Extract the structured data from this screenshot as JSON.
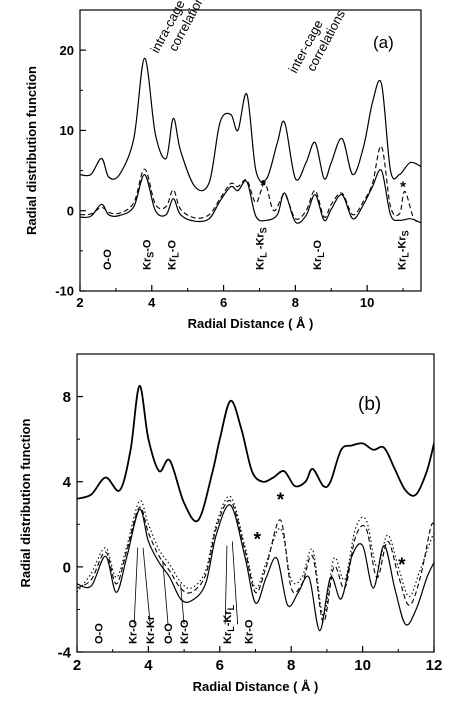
{
  "chart_data": [
    {
      "panel": "(a)",
      "type": "line",
      "xlabel": "Radial Distance ( Å )",
      "ylabel": "Radial distribution function",
      "xlim": [
        2,
        11.5
      ],
      "ylim": [
        -10,
        25
      ],
      "xticks": [
        "2",
        "4",
        "6",
        "8",
        "10"
      ],
      "yticks": [
        "-10",
        "0",
        "10",
        "20"
      ],
      "grid": false,
      "annotations": [
        "intra-cage correlations",
        "inter-cage correlations"
      ],
      "markers": [
        {
          "text": "*",
          "x": 7.1,
          "y": 2.6
        },
        {
          "text": "*",
          "x": 11.0,
          "y": 2.4
        }
      ],
      "peak_labels": [
        {
          "text": "O-O",
          "x": 2.75
        },
        {
          "text": "Kr",
          "sub": "S",
          "text2": "-O",
          "x": 3.85
        },
        {
          "text": "Kr",
          "sub": "L",
          "text2": "-O",
          "x": 4.55
        },
        {
          "text": "Kr",
          "sub": "L",
          "text2": " -Kr",
          "sub2": "S",
          "x": 7.0
        },
        {
          "text": "Kr",
          "sub": "L",
          "text2": "-O",
          "x": 8.6
        },
        {
          "text": "Kr",
          "sub": "L",
          "text2": "-Kr",
          "sub2": "S",
          "x": 10.95
        }
      ],
      "series": [
        {
          "style": "solid",
          "x": [
            2.0,
            2.3,
            2.6,
            2.8,
            3.1,
            3.5,
            3.8,
            4.1,
            4.4,
            4.6,
            4.8,
            5.2,
            5.6,
            5.9,
            6.2,
            6.4,
            6.65,
            6.9,
            7.2,
            7.5,
            7.7,
            8.0,
            8.3,
            8.55,
            8.8,
            9.0,
            9.3,
            9.6,
            9.9,
            10.15,
            10.4,
            10.65,
            10.9,
            11.2,
            11.5
          ],
          "values": [
            4.5,
            4.5,
            6.5,
            4.2,
            4.5,
            9.0,
            19.0,
            9.5,
            6.5,
            11.5,
            7.5,
            3.0,
            3.5,
            11.0,
            12.0,
            10.0,
            14.5,
            5.0,
            4.0,
            8.5,
            11.0,
            4.0,
            6.0,
            8.5,
            4.0,
            6.0,
            9.0,
            4.5,
            8.0,
            13.5,
            15.8,
            5.0,
            4.5,
            6.0,
            5.5
          ]
        },
        {
          "style": "solid",
          "x": [
            2.0,
            2.3,
            2.6,
            2.8,
            3.1,
            3.5,
            3.8,
            4.1,
            4.4,
            4.6,
            4.8,
            5.2,
            5.6,
            5.9,
            6.2,
            6.4,
            6.65,
            6.9,
            7.2,
            7.5,
            7.7,
            8.0,
            8.3,
            8.55,
            8.8,
            9.0,
            9.3,
            9.6,
            9.9,
            10.15,
            10.4,
            10.65,
            10.9,
            11.2,
            11.5
          ],
          "values": [
            -0.8,
            -0.7,
            0.8,
            -0.5,
            -0.6,
            0.5,
            4.5,
            0.0,
            -0.5,
            1.5,
            -0.5,
            -1.3,
            -1.0,
            1.2,
            3.0,
            2.5,
            3.6,
            -0.7,
            -1.2,
            -0.5,
            2.2,
            -1.4,
            -0.6,
            2.0,
            -1.2,
            0.2,
            2.0,
            -1.0,
            0.8,
            3.0,
            5.0,
            -0.5,
            -1.2,
            -1.0,
            -1.5
          ]
        },
        {
          "style": "dashed",
          "x": [
            2.0,
            2.3,
            2.6,
            2.8,
            3.1,
            3.5,
            3.8,
            4.1,
            4.4,
            4.6,
            4.8,
            5.2,
            5.6,
            5.9,
            6.2,
            6.4,
            6.65,
            6.9,
            7.15,
            7.4,
            7.7,
            8.0,
            8.3,
            8.55,
            8.8,
            9.0,
            9.3,
            9.6,
            9.9,
            10.15,
            10.4,
            10.65,
            10.9,
            11.05,
            11.3,
            11.5
          ],
          "values": [
            -0.5,
            -0.4,
            0.4,
            -0.2,
            -0.3,
            1.0,
            5.2,
            0.8,
            0.5,
            2.6,
            0.2,
            -0.9,
            -0.5,
            1.5,
            3.4,
            3.0,
            3.8,
            1.0,
            3.4,
            0.0,
            2.0,
            -1.0,
            0.0,
            2.5,
            -0.8,
            0.8,
            2.2,
            -0.5,
            1.2,
            3.4,
            8.0,
            0.5,
            -0.4,
            2.4,
            -1.0,
            -1.2
          ]
        }
      ]
    },
    {
      "panel": "(b)",
      "type": "line",
      "xlabel": "Radial Distance ( Å )",
      "ylabel": "Radial distribution function",
      "xlim": [
        2,
        12
      ],
      "ylim": [
        -4,
        10
      ],
      "xticks": [
        "2",
        "4",
        "6",
        "8",
        "10",
        "12"
      ],
      "yticks": [
        "-4",
        "0",
        "4",
        "8"
      ],
      "grid": false,
      "markers": [
        {
          "text": "*",
          "x": 7.7,
          "y": 2.85
        },
        {
          "text": "*",
          "x": 7.05,
          "y": 1.0
        },
        {
          "text": "*",
          "x": 11.1,
          "y": -0.2
        }
      ],
      "peak_labels": [
        {
          "text": "O-O",
          "x": 2.6
        },
        {
          "text": "Kr-O",
          "x": 3.55
        },
        {
          "text": "Kr-Kr",
          "x": 4.05
        },
        {
          "text": "O-O",
          "x": 4.55
        },
        {
          "text": "Kr-O",
          "x": 5.0
        },
        {
          "text": "Kr",
          "sub": "L",
          "text2": "-Kr",
          "sub2": "L",
          "x": 6.2
        },
        {
          "text": "Kr-O",
          "x": 6.8
        }
      ],
      "series": [
        {
          "style": "solid-thick",
          "x": [
            2.0,
            2.4,
            2.8,
            3.2,
            3.5,
            3.75,
            4.0,
            4.3,
            4.6,
            5.0,
            5.4,
            5.8,
            6.0,
            6.3,
            6.6,
            6.9,
            7.2,
            7.5,
            7.8,
            8.1,
            8.4,
            8.6,
            8.9,
            9.1,
            9.4,
            9.7,
            10.0,
            10.3,
            10.6,
            10.9,
            11.2,
            11.5,
            11.8,
            12.0
          ],
          "values": [
            3.2,
            3.4,
            4.2,
            3.6,
            5.5,
            8.5,
            6.0,
            4.5,
            5.0,
            3.0,
            2.2,
            4.5,
            6.0,
            7.8,
            6.5,
            4.5,
            4.0,
            4.2,
            4.5,
            3.8,
            4.0,
            4.6,
            3.8,
            4.0,
            5.5,
            5.7,
            5.8,
            5.5,
            5.6,
            4.6,
            3.6,
            3.4,
            4.5,
            5.8
          ]
        },
        {
          "style": "solid",
          "x": [
            2.0,
            2.4,
            2.8,
            3.1,
            3.4,
            3.75,
            4.0,
            4.3,
            4.6,
            4.9,
            5.2,
            5.6,
            5.9,
            6.3,
            6.7,
            7.0,
            7.3,
            7.6,
            7.9,
            8.2,
            8.5,
            8.8,
            9.1,
            9.4,
            9.7,
            10.0,
            10.3,
            10.6,
            10.9,
            11.2,
            11.5,
            11.8,
            12.0
          ],
          "values": [
            -0.8,
            -0.9,
            0.5,
            -1.2,
            0.5,
            2.7,
            1.2,
            0.2,
            -0.5,
            -1.5,
            -1.6,
            -0.8,
            1.5,
            2.9,
            0.5,
            -1.7,
            -0.5,
            0.4,
            -1.8,
            -1.2,
            -0.5,
            -3.0,
            -0.5,
            -1.5,
            0.5,
            1.0,
            -1.0,
            1.0,
            -1.0,
            -2.7,
            -2.0,
            -0.5,
            0.2
          ]
        },
        {
          "style": "dashed",
          "x": [
            2.0,
            2.4,
            2.8,
            3.1,
            3.4,
            3.75,
            4.0,
            4.3,
            4.6,
            4.9,
            5.2,
            5.6,
            5.9,
            6.3,
            6.7,
            7.0,
            7.3,
            7.7,
            8.0,
            8.3,
            8.6,
            8.9,
            9.2,
            9.5,
            9.8,
            10.1,
            10.4,
            10.7,
            11.0,
            11.3,
            11.6,
            11.9,
            12.0
          ],
          "values": [
            -1.0,
            -0.6,
            0.7,
            -0.8,
            0.8,
            2.8,
            1.6,
            0.5,
            -0.2,
            -1.0,
            -1.2,
            -0.4,
            1.8,
            3.1,
            0.8,
            -1.2,
            0.0,
            2.2,
            -1.0,
            -0.8,
            0.5,
            -2.6,
            0.0,
            -1.0,
            1.4,
            1.8,
            -0.5,
            1.2,
            -0.4,
            -1.8,
            -0.6,
            1.8,
            2.0
          ]
        },
        {
          "style": "dotted",
          "x": [
            2.0,
            2.4,
            2.8,
            3.1,
            3.4,
            3.75,
            4.0,
            4.3,
            4.6,
            4.9,
            5.2,
            5.6,
            5.9,
            6.3,
            6.7,
            7.0,
            7.3,
            7.7,
            8.0,
            8.3,
            8.6,
            8.9,
            9.2,
            9.5,
            9.8,
            10.1,
            10.4,
            10.7,
            11.0,
            11.3,
            11.6,
            11.9,
            12.0
          ],
          "values": [
            -1.2,
            -0.3,
            0.9,
            -0.5,
            1.0,
            3.1,
            2.0,
            0.8,
            0.1,
            -0.7,
            -1.0,
            -0.2,
            2.0,
            3.3,
            1.0,
            -1.0,
            0.2,
            1.8,
            -0.6,
            -0.5,
            0.8,
            -2.3,
            0.4,
            -0.6,
            1.8,
            2.2,
            0.0,
            1.5,
            0.0,
            -1.4,
            -0.2,
            1.2,
            1.6
          ]
        }
      ]
    }
  ]
}
